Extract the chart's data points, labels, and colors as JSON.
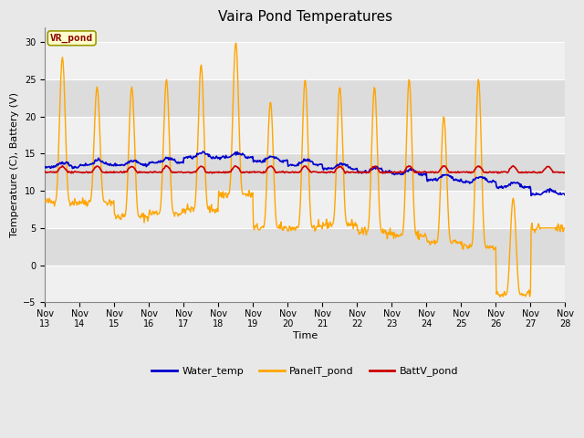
{
  "title": "Vaira Pond Temperatures",
  "xlabel": "Time",
  "ylabel": "Temperature (C), Battery (V)",
  "xlim": [
    13,
    28
  ],
  "ylim": [
    -5,
    32
  ],
  "yticks": [
    -5,
    0,
    5,
    10,
    15,
    20,
    25,
    30
  ],
  "xtick_labels": [
    "Nov 13",
    "Nov 14",
    "Nov 15",
    "Nov 16",
    "Nov 17",
    "Nov 18",
    "Nov 19",
    "Nov 20",
    "Nov 21",
    "Nov 22",
    "Nov 23",
    "Nov 24",
    "Nov 25",
    "Nov 26",
    "Nov 27",
    "Nov 28"
  ],
  "annotation_text": "VR_pond",
  "annotation_color": "#8B0000",
  "annotation_bg": "#FFFFCC",
  "annotation_border": "#999900",
  "water_temp_color": "#0000CC",
  "panel_temp_color": "#FFA500",
  "batt_v_color": "#CC0000",
  "fig_bg_color": "#E8E8E8",
  "plot_bg_color": "#E8E8E8",
  "band_light": "#F0F0F0",
  "band_dark": "#DCDCDC",
  "legend_labels": [
    "Water_temp",
    "PanelT_pond",
    "BattV_pond"
  ],
  "title_fontsize": 11,
  "axis_fontsize": 8,
  "tick_fontsize": 7,
  "peaks": [
    28,
    24,
    24,
    25,
    27,
    30,
    22,
    25,
    24,
    24,
    25,
    20,
    25,
    9,
    5
  ],
  "troughs": [
    8.5,
    8.5,
    6.5,
    7,
    7.5,
    9.5,
    5,
    5,
    5.5,
    4.5,
    4,
    3,
    2.5,
    -4,
    5
  ],
  "water_levels": [
    13.2,
    13.5,
    13.5,
    13.8,
    14.5,
    14.5,
    14.0,
    13.5,
    13.0,
    12.5,
    12.2,
    11.5,
    11.2,
    10.5,
    9.5
  ],
  "batt_base": 12.5
}
